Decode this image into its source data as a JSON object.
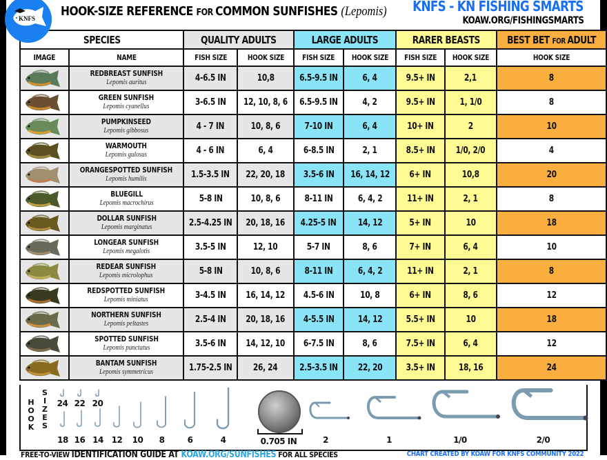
{
  "header": {
    "title_main": "HOOK-SIZE REFERENCE ",
    "title_for": "FOR ",
    "title_tail": "COMMON SUNFISHES ",
    "title_latin": "(Lepomis)",
    "brand": "KNFS - KN FISHING SMARTS",
    "brand_url": "KOAW.ORG/FISHINGSMARTS",
    "logo_text": "KNFS"
  },
  "colors": {
    "quality": "#e6e6e6",
    "large": "#8ae4f8",
    "rarer": "#fffb94",
    "best": "#fbae40",
    "brand_blue": "#1a6ff0",
    "hook_steel": "#7b9bb0"
  },
  "table": {
    "groups": {
      "species": "SPECIES",
      "quality": "QUALITY ADULTS",
      "large": "LARGE ADULTS",
      "rarer": "RARER BEASTS",
      "best_a": "BEST BET ",
      "best_for": "FOR ",
      "best_b": "ADULT"
    },
    "columns": {
      "image": "IMAGE",
      "name": "NAME",
      "q_fish": "FISH SIZE",
      "q_hook": "HOOK SIZE",
      "l_fish": "FISH SIZE",
      "l_hook": "HOOK SIZE",
      "r_fish": "FISH SIZE",
      "r_hook": "HOOK SIZE",
      "best_hook": "HOOK SIZE"
    },
    "rows": [
      {
        "name": "REDBREAST SUNFISH",
        "sci": "Lepomis auritus",
        "q_fish": "4-6.5 IN",
        "q_hook": "10,8",
        "l_fish": "6.5-9.5 IN",
        "l_hook": "6, 4",
        "r_fish": "9.5+ IN",
        "r_hook": "2,1",
        "best": "8"
      },
      {
        "name": "GREEN SUNFISH",
        "sci": "Lepomis cyanellus",
        "q_fish": "3-6.5 IN",
        "q_hook": "12, 10, 8, 6",
        "l_fish": "6.5-9.5 IN",
        "l_hook": "4, 2",
        "r_fish": "9.5+ IN",
        "r_hook": "1, 1/0",
        "best": "8"
      },
      {
        "name": "PUMPKINSEED",
        "sci": "Lepomis gibbosus",
        "q_fish": "4 - 7 IN",
        "q_hook": "10, 8, 6",
        "l_fish": "7-10 IN",
        "l_hook": "6, 4",
        "r_fish": "10+ IN",
        "r_hook": "2",
        "best": "10"
      },
      {
        "name": "WARMOUTH",
        "sci": "Lepomis gulosus",
        "q_fish": "4 - 6 IN",
        "q_hook": "6, 4",
        "l_fish": "6-8.5 IN",
        "l_hook": "2, 1",
        "r_fish": "8.5+ IN",
        "r_hook": "1/0, 2/0",
        "best": "4"
      },
      {
        "name": "ORANGESPOTTED SUNFISH",
        "sci": "Lepomis humilis",
        "q_fish": "1.5-3.5 IN",
        "q_hook": "22, 20, 18",
        "l_fish": "3.5-6 IN",
        "l_hook": "16, 14, 12",
        "r_fish": "6+ IN",
        "r_hook": "10,8",
        "best": "20"
      },
      {
        "name": "BLUEGILL",
        "sci": "Lepomis macrochirus",
        "q_fish": "5-8 IN",
        "q_hook": "10, 8, 6",
        "l_fish": "8-11 IN",
        "l_hook": "6, 4, 2",
        "r_fish": "11+ IN",
        "r_hook": "2, 1",
        "best": "8"
      },
      {
        "name": "DOLLAR SUNFISH",
        "sci": "Lepomis marginatus",
        "q_fish": "2.5-4.25 IN",
        "q_hook": "20, 18, 16",
        "l_fish": "4.25-5 IN",
        "l_hook": "14, 12",
        "r_fish": "5+ IN",
        "r_hook": "10",
        "best": "18"
      },
      {
        "name": "LONGEAR SUNFISH",
        "sci": "Lepomis megalotis",
        "q_fish": "3.5-5 IN",
        "q_hook": "12, 10",
        "l_fish": "5-7 IN",
        "l_hook": "8, 6",
        "r_fish": "7+ IN",
        "r_hook": "6, 4",
        "best": "10"
      },
      {
        "name": "REDEAR SUNFISH",
        "sci": "Lepomis microlophus",
        "q_fish": "5-8 IN",
        "q_hook": "10, 8, 6",
        "l_fish": "8-11 IN",
        "l_hook": "6, 4, 2",
        "r_fish": "11+ IN",
        "r_hook": "2, 1",
        "best": "8"
      },
      {
        "name": "REDSPOTTED SUNFISH",
        "sci": "Lepomis miniatus",
        "q_fish": "3-4.5 IN",
        "q_hook": "16, 14, 12",
        "l_fish": "4.5-6 IN",
        "l_hook": "10, 8",
        "r_fish": "6+ IN",
        "r_hook": "8, 6",
        "best": "12"
      },
      {
        "name": "NORTHERN SUNFISH",
        "sci": "Lepomis peltastes",
        "q_fish": "2.5-4 IN",
        "q_hook": "20, 18, 16",
        "l_fish": "4-5.5 IN",
        "l_hook": "14, 12",
        "r_fish": "5.5+ IN",
        "r_hook": "10",
        "best": "18"
      },
      {
        "name": "SPOTTED SUNFISH",
        "sci": "Lepomis punctatus",
        "q_fish": "3.5-6 IN",
        "q_hook": "14, 12, 10",
        "l_fish": "6-7.5 IN",
        "l_hook": "8, 6",
        "r_fish": "7.5+ IN",
        "r_hook": "6, 4",
        "best": "12"
      },
      {
        "name": "BANTAM SUNFISH",
        "sci": "Lepomis symmetricus",
        "q_fish": "1.75-2.5 IN",
        "q_hook": "26, 24",
        "l_fish": "2.5-3.5 IN",
        "l_hook": "22, 20",
        "r_fish": "3.5+ IN",
        "r_hook": "18, 16",
        "best": "24"
      }
    ]
  },
  "hooks": {
    "label_hook": "HOOK",
    "label_sizes": "SIZES",
    "top_row": [
      "24",
      "22",
      "20"
    ],
    "bottom_row": [
      "18",
      "16",
      "14",
      "12",
      "10",
      "8",
      "6",
      "4"
    ],
    "dime_label": "0.705 IN",
    "large": [
      "2",
      "1",
      "1/0",
      "2/0"
    ]
  },
  "footer": {
    "left_a": "FREE-TO-VIEW ",
    "left_b": "IDENTIFICATION GUIDE AT ",
    "left_link": "KOAW.ORG/SUNFISHES",
    "left_c": " FOR ALL SPECIES",
    "right": "CHART CREATED BY KOAW FOR KNFS COMMUNITY 2022"
  }
}
